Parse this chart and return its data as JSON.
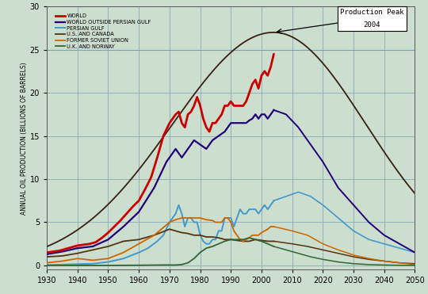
{
  "ylabel": "ANNUAL OIL PRODUCTION (BILLIONS OF BARRELS)",
  "xlim": [
    1930,
    2050
  ],
  "ylim": [
    -0.5,
    30
  ],
  "yticks": [
    0,
    5,
    10,
    15,
    20,
    25,
    30
  ],
  "xticks": [
    1930,
    1940,
    1950,
    1960,
    1970,
    1980,
    1990,
    2000,
    2010,
    2020,
    2030,
    2040,
    2050
  ],
  "bg_color": "#ccdece",
  "grid_color": "#8aaabb",
  "annotation_box_text1": "Production Peak",
  "annotation_box_text2": "2004",
  "legend_entries": [
    {
      "label": "WORLD",
      "color": "#cc0000",
      "lw": 2.0
    },
    {
      "label": "WORLD OUTSIDE PERSIAN GULF",
      "color": "#220077",
      "lw": 1.6
    },
    {
      "label": "PERSIAN GULF",
      "color": "#4499cc",
      "lw": 1.4
    },
    {
      "label": "U.S. AND CANADA",
      "color": "#553311",
      "lw": 1.3
    },
    {
      "label": "FORMER SOVIET UNION",
      "color": "#cc6600",
      "lw": 1.3
    },
    {
      "label": "U.K. AND NORWAY",
      "color": "#336633",
      "lw": 1.3
    }
  ],
  "world_bell_curve": {
    "peak_year": 2004,
    "peak_value": 27.0,
    "color": "#3a2010",
    "lw": 1.3
  },
  "world_historical": {
    "years": [
      1930,
      1932,
      1934,
      1936,
      1938,
      1940,
      1942,
      1944,
      1946,
      1948,
      1950,
      1952,
      1954,
      1956,
      1958,
      1960,
      1962,
      1964,
      1966,
      1968,
      1970,
      1971,
      1972,
      1973,
      1974,
      1975,
      1976,
      1977,
      1978,
      1979,
      1980,
      1981,
      1982,
      1983,
      1984,
      1985,
      1986,
      1987,
      1988,
      1989,
      1990,
      1991,
      1992,
      1993,
      1994,
      1995,
      1996,
      1997,
      1998,
      1999,
      2000,
      2001,
      2002,
      2003,
      2004
    ],
    "values": [
      1.5,
      1.6,
      1.7,
      1.9,
      2.1,
      2.3,
      2.4,
      2.5,
      2.7,
      3.2,
      3.8,
      4.5,
      5.2,
      6.0,
      6.8,
      7.5,
      8.8,
      10.2,
      12.5,
      15.0,
      16.5,
      17.0,
      17.5,
      17.8,
      16.5,
      16.0,
      17.5,
      17.8,
      18.5,
      19.5,
      18.5,
      17.0,
      16.0,
      15.5,
      16.5,
      16.5,
      17.0,
      17.5,
      18.5,
      18.5,
      19.0,
      18.5,
      18.5,
      18.5,
      18.5,
      19.0,
      20.0,
      21.0,
      21.5,
      20.5,
      22.0,
      22.5,
      22.0,
      23.0,
      24.5
    ]
  },
  "world_outside_historical": {
    "years": [
      1930,
      1935,
      1940,
      1945,
      1950,
      1955,
      1960,
      1965,
      1967,
      1969,
      1970,
      1972,
      1974,
      1976,
      1978,
      1980,
      1982,
      1984,
      1986,
      1988,
      1989,
      1990,
      1991,
      1992,
      1993,
      1994,
      1995,
      1996,
      1997,
      1998,
      1999,
      2000,
      2001,
      2002,
      2003,
      2004
    ],
    "values": [
      1.3,
      1.6,
      2.0,
      2.2,
      3.0,
      4.5,
      6.2,
      9.0,
      10.5,
      12.0,
      12.5,
      13.5,
      12.5,
      13.5,
      14.5,
      14.0,
      13.5,
      14.5,
      15.0,
      15.5,
      16.0,
      16.5,
      16.5,
      16.5,
      16.5,
      16.5,
      16.5,
      16.8,
      17.0,
      17.5,
      17.0,
      17.5,
      17.5,
      17.0,
      17.5,
      18.0
    ]
  },
  "world_outside_forecast": {
    "years": [
      2004,
      2008,
      2012,
      2016,
      2020,
      2025,
      2030,
      2035,
      2040,
      2045,
      2050
    ],
    "values": [
      18.0,
      17.5,
      16.0,
      14.0,
      12.0,
      9.0,
      7.0,
      5.0,
      3.5,
      2.5,
      1.5
    ]
  },
  "persian_gulf_historical": {
    "years": [
      1930,
      1935,
      1940,
      1945,
      1950,
      1955,
      1960,
      1963,
      1966,
      1968,
      1970,
      1971,
      1972,
      1973,
      1974,
      1975,
      1976,
      1977,
      1978,
      1979,
      1980,
      1981,
      1982,
      1983,
      1984,
      1985,
      1986,
      1987,
      1988,
      1989,
      1990,
      1991,
      1992,
      1993,
      1994,
      1995,
      1996,
      1997,
      1998,
      1999,
      2000,
      2001,
      2002,
      2003,
      2004
    ],
    "values": [
      0.05,
      0.1,
      0.15,
      0.2,
      0.4,
      0.8,
      1.5,
      2.0,
      2.8,
      3.5,
      5.0,
      5.5,
      6.0,
      7.0,
      6.0,
      4.5,
      5.5,
      5.5,
      5.0,
      5.0,
      3.5,
      2.8,
      2.5,
      2.5,
      3.0,
      3.0,
      4.0,
      4.0,
      5.5,
      5.5,
      5.5,
      4.5,
      5.5,
      6.5,
      6.0,
      6.0,
      6.5,
      6.5,
      6.5,
      6.0,
      6.5,
      7.0,
      6.5,
      7.0,
      7.5
    ]
  },
  "persian_gulf_forecast": {
    "years": [
      2004,
      2008,
      2012,
      2016,
      2020,
      2025,
      2030,
      2035,
      2040,
      2045,
      2050
    ],
    "values": [
      7.5,
      8.0,
      8.5,
      8.0,
      7.0,
      5.5,
      4.0,
      3.0,
      2.5,
      2.0,
      1.5
    ]
  },
  "us_canada_historical": {
    "years": [
      1930,
      1935,
      1940,
      1945,
      1950,
      1955,
      1960,
      1965,
      1970,
      1972,
      1974,
      1976,
      1978,
      1980,
      1982,
      1984,
      1986,
      1988,
      1990,
      1992,
      1994,
      1996,
      1998,
      2000,
      2002,
      2004
    ],
    "values": [
      1.0,
      1.1,
      1.4,
      1.8,
      2.2,
      2.8,
      3.0,
      3.5,
      4.2,
      4.0,
      3.8,
      3.7,
      3.5,
      3.5,
      3.3,
      3.3,
      3.2,
      3.0,
      3.0,
      2.9,
      2.8,
      2.8,
      3.0,
      2.9,
      2.8,
      2.8
    ]
  },
  "us_canada_forecast": {
    "years": [
      2004,
      2010,
      2015,
      2020,
      2025,
      2030,
      2035,
      2040,
      2045,
      2050
    ],
    "values": [
      2.8,
      2.5,
      2.2,
      1.8,
      1.4,
      1.0,
      0.7,
      0.5,
      0.3,
      0.2
    ]
  },
  "fsu_historical": {
    "years": [
      1930,
      1935,
      1940,
      1945,
      1950,
      1955,
      1960,
      1965,
      1970,
      1972,
      1974,
      1976,
      1978,
      1980,
      1982,
      1984,
      1985,
      1986,
      1987,
      1988,
      1989,
      1990,
      1991,
      1992,
      1993,
      1994,
      1995,
      1996,
      1997,
      1998,
      1999,
      2000,
      2001,
      2002,
      2003,
      2004
    ],
    "values": [
      0.3,
      0.5,
      0.8,
      0.6,
      0.8,
      1.5,
      2.5,
      3.5,
      5.0,
      5.3,
      5.5,
      5.5,
      5.5,
      5.5,
      5.3,
      5.2,
      5.0,
      5.0,
      5.0,
      5.5,
      5.5,
      5.0,
      4.0,
      3.5,
      3.0,
      2.8,
      3.0,
      3.2,
      3.5,
      3.5,
      3.5,
      3.8,
      4.0,
      4.2,
      4.5,
      4.5
    ]
  },
  "fsu_forecast": {
    "years": [
      2004,
      2010,
      2015,
      2020,
      2025,
      2030,
      2035,
      2040,
      2045,
      2050
    ],
    "values": [
      4.5,
      4.0,
      3.5,
      2.5,
      1.8,
      1.2,
      0.8,
      0.5,
      0.3,
      0.1
    ]
  },
  "uk_norway_historical": {
    "years": [
      1930,
      1940,
      1950,
      1960,
      1968,
      1970,
      1972,
      1974,
      1976,
      1978,
      1980,
      1982,
      1984,
      1986,
      1988,
      1990,
      1992,
      1994,
      1996,
      1998,
      2000,
      2002,
      2004
    ],
    "values": [
      0.0,
      0.0,
      0.0,
      0.02,
      0.05,
      0.05,
      0.05,
      0.1,
      0.3,
      0.8,
      1.5,
      2.0,
      2.2,
      2.5,
      2.8,
      3.0,
      3.0,
      3.0,
      3.2,
      3.0,
      2.8,
      2.5,
      2.2
    ]
  },
  "uk_norway_forecast": {
    "years": [
      2004,
      2008,
      2012,
      2016,
      2020,
      2025,
      2030,
      2035,
      2040,
      2045,
      2050
    ],
    "values": [
      2.2,
      1.8,
      1.4,
      1.0,
      0.7,
      0.4,
      0.2,
      0.1,
      0.05,
      0.02,
      0.01
    ]
  }
}
